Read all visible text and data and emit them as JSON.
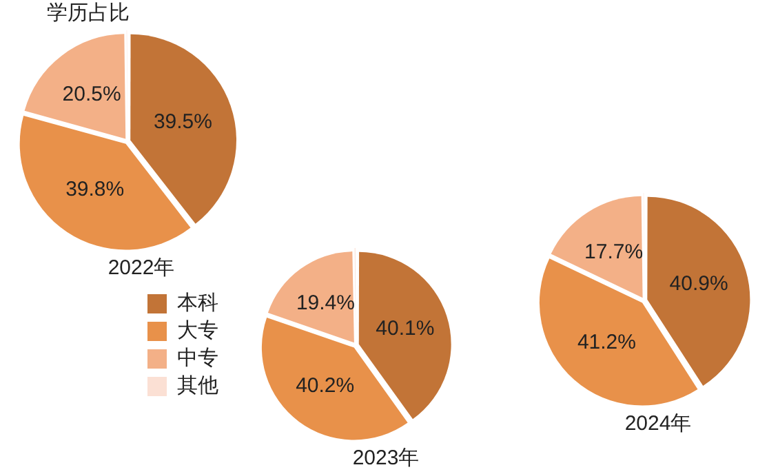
{
  "chart_data": [
    {
      "type": "pie",
      "title": "学历占比",
      "xlabel": "2022年",
      "categories": [
        null,
        null,
        null,
        null
      ],
      "values": [
        39.5,
        39.8,
        20.5,
        0.2
      ],
      "colors": [
        "#c27437",
        "#e8914a",
        "#f3b087",
        "#fbe0d4"
      ],
      "value_labels": [
        "39.5%",
        "39.8%",
        "20.5%",
        null
      ]
    },
    {
      "type": "pie",
      "xlabel": "2023年",
      "categories": [
        "本科",
        "大专",
        "中专",
        "其他"
      ],
      "values": [
        40.1,
        40.2,
        19.4,
        0.3
      ],
      "colors": [
        "#c27437",
        "#e8914a",
        "#f3b087",
        "#fbe0d4"
      ],
      "value_labels": [
        "40.1%",
        "40.2%",
        "19.4%",
        null
      ],
      "legend": "left"
    },
    {
      "type": "pie",
      "xlabel": "2024年",
      "categories": [
        null,
        null,
        null,
        null
      ],
      "values": [
        40.9,
        41.2,
        17.7,
        0.2
      ],
      "colors": [
        "#c27437",
        "#e8914a",
        "#f3b087",
        "#fbe0d4"
      ],
      "value_labels": [
        "40.9%",
        "41.2%",
        "17.7%",
        null
      ]
    }
  ]
}
